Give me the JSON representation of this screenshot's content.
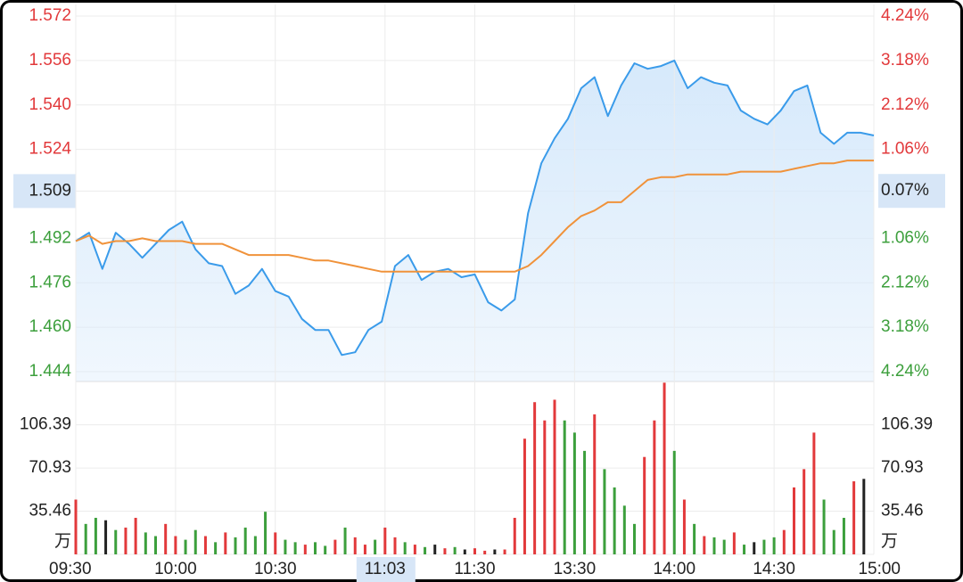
{
  "chart_data": [
    {
      "type": "line",
      "x": [
        0,
        4,
        8,
        12,
        16,
        20,
        24,
        28,
        32,
        36,
        40,
        44,
        48,
        52,
        56,
        60,
        64,
        68,
        72,
        76,
        80,
        84,
        88,
        92,
        96,
        100,
        104,
        108,
        112,
        116,
        120,
        124,
        128,
        132,
        136,
        140,
        144,
        148,
        152,
        156,
        160,
        164,
        168,
        172,
        176,
        180,
        184,
        188,
        192,
        196,
        200,
        204,
        208,
        212,
        216,
        220,
        224,
        228,
        232,
        236,
        240
      ],
      "series": [
        {
          "color": "#3a9bea",
          "fill": "#d6e9fb",
          "values": [
            1.491,
            1.494,
            1.481,
            1.494,
            1.49,
            1.485,
            1.49,
            1.495,
            1.498,
            1.488,
            1.483,
            1.482,
            1.472,
            1.475,
            1.481,
            1.473,
            1.471,
            1.463,
            1.459,
            1.459,
            1.45,
            1.451,
            1.459,
            1.462,
            1.482,
            1.486,
            1.477,
            1.48,
            1.481,
            1.478,
            1.479,
            1.469,
            1.466,
            1.47,
            1.501,
            1.519,
            1.528,
            1.535,
            1.546,
            1.55,
            1.536,
            1.547,
            1.555,
            1.553,
            1.554,
            1.556,
            1.546,
            1.55,
            1.548,
            1.547,
            1.538,
            1.535,
            1.533,
            1.538,
            1.545,
            1.547,
            1.53,
            1.526,
            1.53,
            1.53,
            1.529
          ]
        },
        {
          "color": "#f0923a",
          "values": [
            1.491,
            1.493,
            1.49,
            1.491,
            1.491,
            1.492,
            1.491,
            1.491,
            1.491,
            1.49,
            1.49,
            1.49,
            1.488,
            1.486,
            1.486,
            1.486,
            1.486,
            1.485,
            1.484,
            1.484,
            1.483,
            1.482,
            1.481,
            1.48,
            1.48,
            1.48,
            1.48,
            1.48,
            1.48,
            1.48,
            1.48,
            1.48,
            1.48,
            1.48,
            1.482,
            1.486,
            1.491,
            1.496,
            1.5,
            1.502,
            1.505,
            1.505,
            1.509,
            1.513,
            1.514,
            1.514,
            1.515,
            1.515,
            1.515,
            1.515,
            1.516,
            1.516,
            1.516,
            1.516,
            1.517,
            1.518,
            1.519,
            1.519,
            1.52,
            1.52,
            1.52
          ]
        }
      ],
      "xlim": [
        0,
        240
      ],
      "ylim": [
        1.444,
        1.572
      ],
      "yticks": [
        1.572,
        1.556,
        {
          "value": 1.54,
          "label": "1.540"
        },
        1.524,
        1.509,
        1.492,
        1.476,
        {
          "value": 1.46,
          "label": "1.460"
        },
        1.444
      ],
      "y2lim": [
        -4.24,
        4.24
      ],
      "y2ticks": [
        {
          "value": 4.24,
          "label": "4.24%"
        },
        {
          "value": 3.18,
          "label": "3.18%"
        },
        {
          "value": 2.12,
          "label": "2.12%"
        },
        {
          "value": 1.06,
          "label": "1.06%"
        },
        {
          "value": 0.07,
          "label": "0.07%"
        },
        {
          "value": -1.06,
          "label": "1.06%"
        },
        {
          "value": -2.12,
          "label": "2.12%"
        },
        {
          "value": -3.18,
          "label": "3.18%"
        },
        {
          "value": -4.24,
          "label": "4.24%"
        }
      ],
      "up_color": "#e2393b",
      "down_color": "#3c9f3c",
      "flat_color": "#222222",
      "grid": true
    },
    {
      "type": "bar",
      "x": [
        0,
        3,
        6,
        9,
        12,
        15,
        18,
        21,
        24,
        27,
        30,
        33,
        36,
        39,
        42,
        45,
        48,
        51,
        54,
        57,
        60,
        63,
        66,
        69,
        72,
        75,
        78,
        81,
        84,
        87,
        90,
        93,
        96,
        99,
        102,
        105,
        108,
        111,
        114,
        117,
        120,
        123,
        126,
        129,
        132,
        135,
        138,
        141,
        144,
        147,
        150,
        153,
        156,
        159,
        162,
        165,
        168,
        171,
        174,
        177,
        180,
        183,
        186,
        189,
        192,
        195,
        198,
        201,
        204,
        207,
        210,
        213,
        216,
        219,
        222,
        225,
        228,
        231,
        234,
        237
      ],
      "values": [
        45,
        25,
        30,
        28,
        20,
        22,
        30,
        18,
        15,
        25,
        15,
        12,
        20,
        15,
        10,
        18,
        14,
        22,
        15,
        35,
        18,
        12,
        10,
        8,
        10,
        7,
        12,
        22,
        14,
        8,
        12,
        22,
        14,
        10,
        8,
        6,
        8,
        5,
        6,
        4,
        5,
        3,
        4,
        4,
        30,
        95,
        125,
        110,
        127,
        110,
        100,
        85,
        115,
        70,
        55,
        40,
        25,
        80,
        110,
        141,
        85,
        45,
        25,
        15,
        14,
        12,
        18,
        8,
        10,
        12,
        14,
        20,
        55,
        70,
        100,
        45,
        20,
        30,
        60,
        62
      ],
      "colors": [
        "#e2393b",
        "#3c9f3c",
        "#3c9f3c",
        "#222222",
        "#3c9f3c",
        "#e2393b",
        "#e2393b",
        "#3c9f3c",
        "#3c9f3c",
        "#e2393b",
        "#e2393b",
        "#3c9f3c",
        "#3c9f3c",
        "#e2393b",
        "#3c9f3c",
        "#e2393b",
        "#3c9f3c",
        "#3c9f3c",
        "#3c9f3c",
        "#3c9f3c",
        "#e2393b",
        "#3c9f3c",
        "#3c9f3c",
        "#e2393b",
        "#3c9f3c",
        "#3c9f3c",
        "#e2393b",
        "#3c9f3c",
        "#e2393b",
        "#e2393b",
        "#3c9f3c",
        "#e2393b",
        "#e2393b",
        "#3c9f3c",
        "#e2393b",
        "#3c9f3c",
        "#222222",
        "#e2393b",
        "#3c9f3c",
        "#222222",
        "#e2393b",
        "#e2393b",
        "#222222",
        "#e2393b",
        "#e2393b",
        "#e2393b",
        "#e2393b",
        "#e2393b",
        "#e2393b",
        "#3c9f3c",
        "#3c9f3c",
        "#3c9f3c",
        "#e2393b",
        "#3c9f3c",
        "#3c9f3c",
        "#3c9f3c",
        "#3c9f3c",
        "#e2393b",
        "#e2393b",
        "#e2393b",
        "#3c9f3c",
        "#e2393b",
        "#3c9f3c",
        "#e2393b",
        "#3c9f3c",
        "#3c9f3c",
        "#e2393b",
        "#3c9f3c",
        "#222222",
        "#3c9f3c",
        "#3c9f3c",
        "#e2393b",
        "#e2393b",
        "#e2393b",
        "#e2393b",
        "#3c9f3c",
        "#3c9f3c",
        "#3c9f3c",
        "#e2393b",
        "#222222"
      ],
      "xlim": [
        0,
        240
      ],
      "xticks": [
        {
          "value": 0,
          "label": "09:30"
        },
        {
          "value": 30,
          "label": "10:00"
        },
        {
          "value": 60,
          "label": "10:30"
        },
        {
          "value": 93,
          "label": "11:03"
        },
        {
          "value": 120,
          "label": "11:30"
        },
        {
          "value": 150,
          "label": "13:30"
        },
        {
          "value": 180,
          "label": "14:00"
        },
        {
          "value": 210,
          "label": "14:30"
        },
        {
          "value": 240,
          "label": "15:00"
        }
      ],
      "cursor_x": 93,
      "ylim": [
        0,
        142
      ],
      "yticks": [
        {
          "value": 0,
          "label": "万"
        },
        35.46,
        70.93,
        106.39
      ],
      "grid": true
    }
  ]
}
